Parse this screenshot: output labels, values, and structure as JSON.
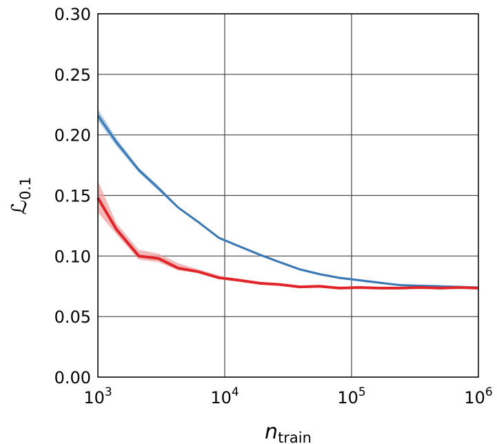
{
  "chart_data": {
    "type": "line",
    "xlabel": "n",
    "xlabel_subscript": "train",
    "ylabel": "ℒ",
    "ylabel_subscript": "0.1",
    "x_scale": "log",
    "xlim": [
      1000,
      1000000
    ],
    "ylim": [
      0.0,
      0.3
    ],
    "grid": true,
    "x_ticks": [
      {
        "value": 1000,
        "base": "10",
        "exp": "3"
      },
      {
        "value": 10000,
        "base": "10",
        "exp": "4"
      },
      {
        "value": 100000,
        "base": "10",
        "exp": "5"
      },
      {
        "value": 1000000,
        "base": "10",
        "exp": "6"
      }
    ],
    "y_ticks": [
      {
        "value": 0.0,
        "label": "0.00"
      },
      {
        "value": 0.05,
        "label": "0.05"
      },
      {
        "value": 0.1,
        "label": "0.10"
      },
      {
        "value": 0.15,
        "label": "0.15"
      },
      {
        "value": 0.2,
        "label": "0.20"
      },
      {
        "value": 0.25,
        "label": "0.25"
      },
      {
        "value": 0.3,
        "label": "0.30"
      }
    ],
    "series": [
      {
        "color": "#3a78b5",
        "band_color": "#8cb4da",
        "x": [
          1000,
          1400,
          2100,
          3000,
          4300,
          6200,
          9000,
          13000,
          19000,
          27000,
          39000,
          56000,
          80000,
          115000,
          165000,
          240000,
          345000,
          500000,
          720000,
          1000000
        ],
        "y": [
          0.216,
          0.194,
          0.171,
          0.156,
          0.14,
          0.128,
          0.115,
          0.108,
          0.101,
          0.095,
          0.089,
          0.085,
          0.082,
          0.08,
          0.078,
          0.076,
          0.0755,
          0.075,
          0.0745,
          0.074
        ],
        "lower": [
          0.212,
          0.191,
          0.169,
          0.154,
          0.139,
          0.127,
          0.114,
          0.107,
          0.1,
          0.094,
          0.088,
          0.084,
          0.081,
          0.079,
          0.077,
          0.0755,
          0.075,
          0.0745,
          0.074,
          0.0735
        ],
        "upper": [
          0.221,
          0.197,
          0.173,
          0.158,
          0.141,
          0.129,
          0.116,
          0.109,
          0.102,
          0.096,
          0.09,
          0.086,
          0.083,
          0.081,
          0.079,
          0.0765,
          0.076,
          0.0755,
          0.075,
          0.0745
        ]
      },
      {
        "color": "#e0252a",
        "band_color": "#f1a0a2",
        "x": [
          1000,
          1400,
          2100,
          3000,
          4300,
          6200,
          9000,
          13000,
          19000,
          27000,
          39000,
          56000,
          80000,
          115000,
          165000,
          240000,
          345000,
          500000,
          720000,
          1000000
        ],
        "y": [
          0.148,
          0.122,
          0.1,
          0.098,
          0.09,
          0.087,
          0.082,
          0.08,
          0.0775,
          0.0765,
          0.0745,
          0.075,
          0.0735,
          0.074,
          0.0735,
          0.0735,
          0.074,
          0.0735,
          0.074,
          0.0735
        ],
        "lower": [
          0.136,
          0.118,
          0.097,
          0.095,
          0.088,
          0.086,
          0.081,
          0.079,
          0.0768,
          0.0758,
          0.074,
          0.0745,
          0.073,
          0.0735,
          0.073,
          0.073,
          0.0735,
          0.073,
          0.0735,
          0.073
        ],
        "upper": [
          0.162,
          0.127,
          0.105,
          0.102,
          0.094,
          0.089,
          0.084,
          0.081,
          0.0785,
          0.0772,
          0.0752,
          0.0755,
          0.074,
          0.0745,
          0.074,
          0.074,
          0.0745,
          0.074,
          0.0745,
          0.074
        ]
      }
    ]
  }
}
